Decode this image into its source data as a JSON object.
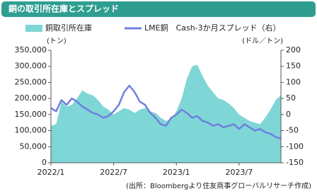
{
  "chart_data": {
    "type": "area",
    "title": "銅の取引所在庫とスプレッド",
    "ylabel": "(トン)",
    "y2label": "(ドル／トン)",
    "note": "(出所：Bloombergより住友商事グローバルリサーチ作成)",
    "categories": [
      "2022/1",
      null,
      null,
      null,
      null,
      null,
      null,
      null,
      null,
      null,
      null,
      null,
      "2022/7",
      null,
      null,
      null,
      null,
      null,
      null,
      null,
      null,
      null,
      null,
      null,
      "2023/1",
      null,
      null,
      null,
      null,
      null,
      null,
      null,
      null,
      null,
      null,
      null,
      "2023/7",
      null,
      null,
      null,
      null,
      null,
      null,
      null,
      null
    ],
    "series": [
      {
        "name": "銅取引所在庫",
        "type": "area",
        "color": "#7fd6d6",
        "values": [
          115000,
          120000,
          190000,
          175000,
          180000,
          200000,
          225000,
          215000,
          210000,
          195000,
          175000,
          165000,
          150000,
          160000,
          170000,
          165000,
          155000,
          165000,
          170000,
          160000,
          155000,
          140000,
          130000,
          135000,
          160000,
          200000,
          260000,
          300000,
          305000,
          270000,
          240000,
          220000,
          200000,
          195000,
          185000,
          170000,
          150000,
          140000,
          130000,
          125000,
          120000,
          140000,
          165000,
          195000,
          210000
        ]
      },
      {
        "name": "LME銅　Cash-3か月スプレッド（右）",
        "type": "line",
        "axis": "y2",
        "color": "#6f80dc",
        "values": [
          20,
          10,
          45,
          30,
          50,
          40,
          25,
          15,
          5,
          0,
          -10,
          -5,
          10,
          30,
          70,
          90,
          70,
          40,
          30,
          5,
          -10,
          -30,
          -35,
          -10,
          0,
          15,
          5,
          -10,
          -5,
          -20,
          -25,
          -35,
          -30,
          -40,
          -35,
          -30,
          -45,
          -30,
          -40,
          -50,
          -45,
          -55,
          -60,
          -70,
          -75
        ]
      }
    ],
    "ylim": [
      0,
      350000
    ],
    "yticks": [
      {
        "value": 0,
        "label": "0"
      },
      {
        "value": 50000,
        "label": "50,000"
      },
      {
        "value": 100000,
        "label": "100,000"
      },
      {
        "value": 150000,
        "label": "150,000"
      },
      {
        "value": 200000,
        "label": "200,000"
      },
      {
        "value": 250000,
        "label": "250,000"
      },
      {
        "value": 300000,
        "label": "300,000"
      },
      {
        "value": 350000,
        "label": "350,000"
      }
    ],
    "y2lim": [
      -150,
      200
    ],
    "y2ticks": [
      -150,
      -100,
      -50,
      0,
      50,
      100,
      150,
      200
    ],
    "grid": false
  }
}
